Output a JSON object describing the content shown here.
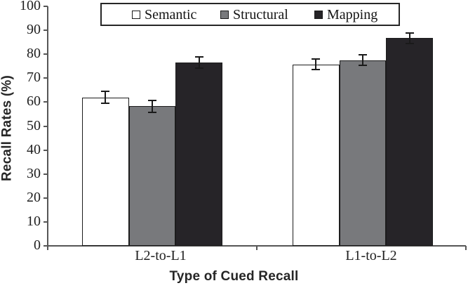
{
  "figure": {
    "background": "#ffffff"
  },
  "chart_data": {
    "type": "bar",
    "title": "",
    "xlabel": "Type of Cued Recall",
    "ylabel": "Recall Rates (%)",
    "categories": [
      "L2-to-L1",
      "L1-to-L2"
    ],
    "series": [
      {
        "name": "Semantic",
        "fill": "#ffffff",
        "stroke": "#1c1c1c",
        "values": [
          62.0,
          75.8
        ],
        "errors": [
          2.4,
          2.2
        ]
      },
      {
        "name": "Structural",
        "fill": "#78797c",
        "stroke": "#1c1c1c",
        "values": [
          58.3,
          77.5
        ],
        "errors": [
          2.5,
          2.2
        ]
      },
      {
        "name": "Mapping",
        "fill": "#262428",
        "stroke": "#1c1c1c",
        "values": [
          76.5,
          86.7
        ],
        "errors": [
          2.3,
          2.2
        ]
      }
    ],
    "ylim": [
      0,
      100
    ],
    "yticks": [
      0,
      10,
      20,
      30,
      40,
      50,
      60,
      70,
      80,
      90,
      100
    ],
    "grid": false,
    "legend_position": "top-center",
    "error_bars": true,
    "axis_color": "#565656",
    "error_bar_color": "#1a1a1a",
    "text_color": "#1f1f1f"
  }
}
